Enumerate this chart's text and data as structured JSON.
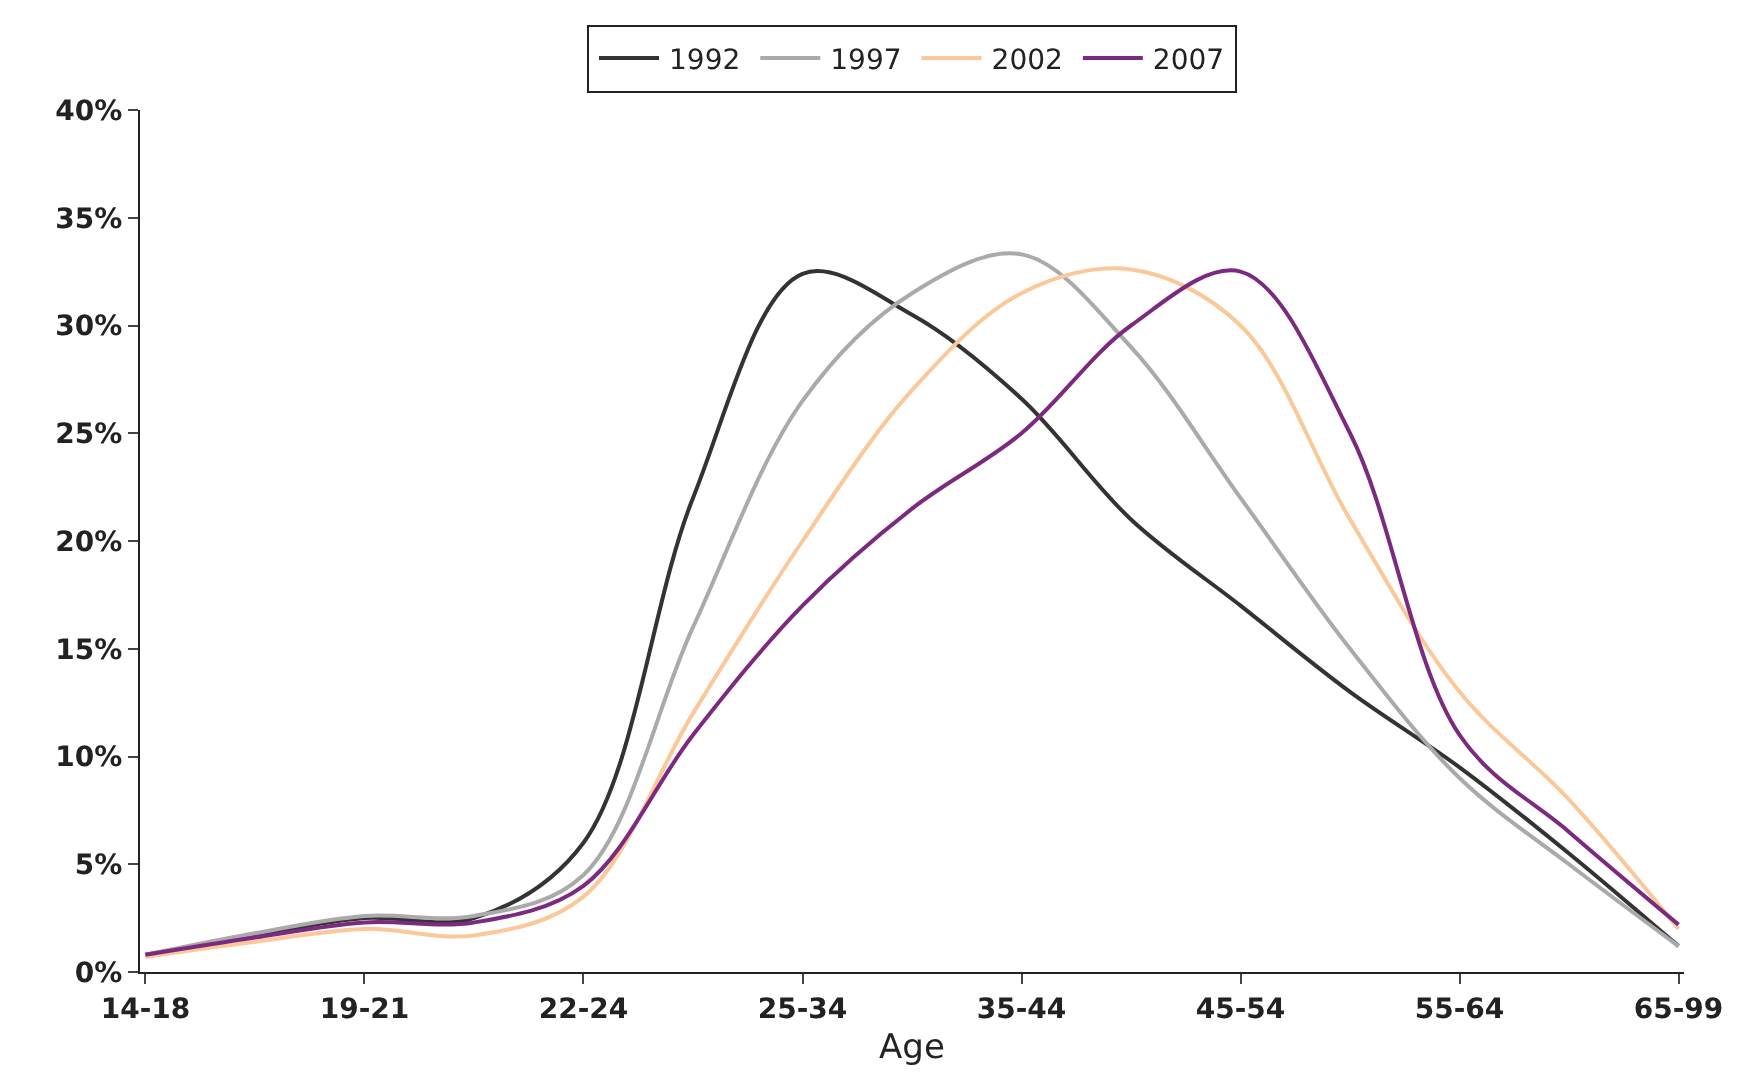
{
  "chart_data": {
    "type": "line",
    "xlabel": "Age",
    "categories": [
      "14-18",
      null,
      "19-21",
      null,
      "22-24",
      null,
      "25-34",
      null,
      "35-44",
      null,
      "45-54",
      null,
      "55-64",
      null,
      "65-99"
    ],
    "series": [
      {
        "name": "1992",
        "color": "#333333",
        "values": [
          0.8,
          1.7,
          2.5,
          2.5,
          6,
          22,
          32.4,
          30.5,
          26.6,
          21,
          17,
          13,
          9.5,
          5.5,
          1.2
        ]
      },
      {
        "name": "1997",
        "color": "#aaaaaa",
        "values": [
          0.8,
          1.8,
          2.6,
          2.6,
          4.5,
          16,
          26.5,
          31.5,
          33.3,
          29,
          22,
          15,
          9,
          5,
          1.2
        ]
      },
      {
        "name": "2002",
        "color": "#fbc89a",
        "values": [
          0.7,
          1.4,
          2.0,
          1.7,
          3.5,
          12,
          20,
          27,
          31.5,
          32.6,
          30,
          21,
          13,
          8,
          2.0
        ]
      },
      {
        "name": "2007",
        "color": "#7b2a7f",
        "values": [
          0.8,
          1.6,
          2.3,
          2.3,
          4,
          11,
          17,
          21.5,
          25,
          30,
          32.5,
          25,
          11,
          6.5,
          2.2
        ]
      }
    ],
    "ylim": [
      0,
      40
    ],
    "yticks": [
      {
        "value": 0,
        "label": "0%"
      },
      {
        "value": 5,
        "label": "5%"
      },
      {
        "value": 10,
        "label": "10%"
      },
      {
        "value": 15,
        "label": "15%"
      },
      {
        "value": 20,
        "label": "20%"
      },
      {
        "value": 25,
        "label": "25%"
      },
      {
        "value": 30,
        "label": "30%"
      },
      {
        "value": 35,
        "label": "35%"
      },
      {
        "value": 40,
        "label": "40%"
      }
    ],
    "legend": "top",
    "marker": "none",
    "line_style": "solid"
  }
}
